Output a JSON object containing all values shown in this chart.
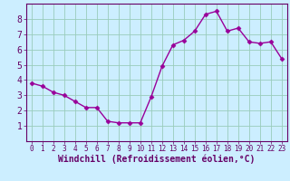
{
  "x": [
    0,
    1,
    2,
    3,
    4,
    5,
    6,
    7,
    8,
    9,
    10,
    11,
    12,
    13,
    14,
    15,
    16,
    17,
    18,
    19,
    20,
    21,
    22,
    23
  ],
  "y": [
    3.8,
    3.6,
    3.2,
    3.0,
    2.6,
    2.2,
    2.2,
    1.3,
    1.2,
    1.2,
    1.2,
    2.9,
    4.9,
    6.3,
    6.6,
    7.2,
    8.3,
    8.5,
    7.2,
    7.4,
    6.5,
    6.4,
    6.5,
    5.4
  ],
  "line_color": "#990099",
  "marker": "D",
  "marker_size": 2.5,
  "bg_color": "#cceeff",
  "grid_color": "#99ccbb",
  "xlabel": "Windchill (Refroidissement éolien,°C)",
  "xlabel_color": "#660066",
  "tick_color": "#660066",
  "xlim": [
    -0.5,
    23.5
  ],
  "ylim": [
    0,
    9
  ],
  "yticks": [
    1,
    2,
    3,
    4,
    5,
    6,
    7,
    8
  ],
  "xticks": [
    0,
    1,
    2,
    3,
    4,
    5,
    6,
    7,
    8,
    9,
    10,
    11,
    12,
    13,
    14,
    15,
    16,
    17,
    18,
    19,
    20,
    21,
    22,
    23
  ],
  "xlabel_fontsize": 7,
  "xtick_fontsize": 5.5,
  "ytick_fontsize": 7,
  "line_width": 1.0
}
